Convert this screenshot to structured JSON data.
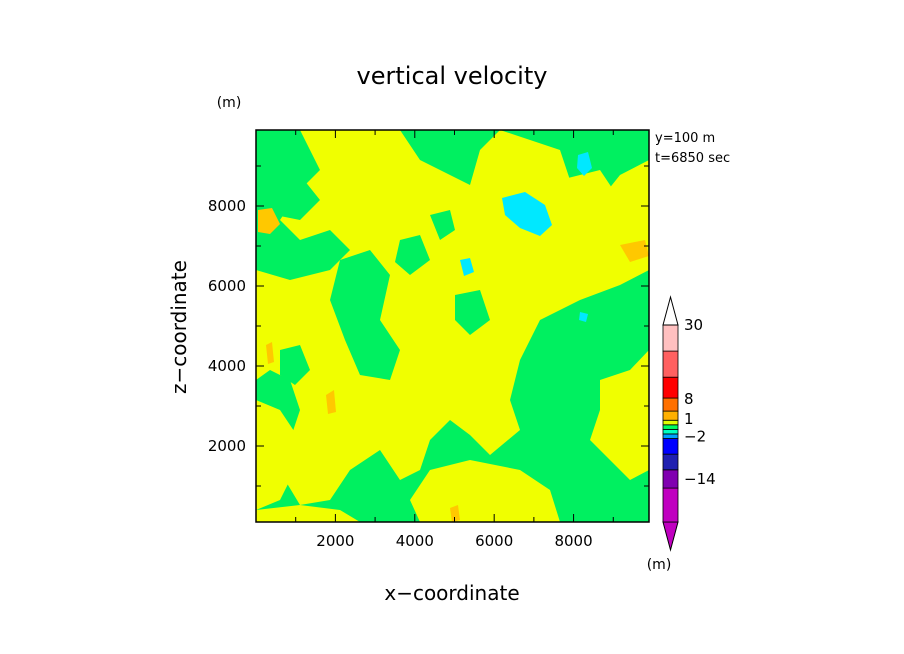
{
  "chart_data": {
    "type": "heatmap",
    "title": "vertical velocity",
    "xlabel": "x−coordinate",
    "ylabel": "z−coordinate",
    "x_unit": "(m)",
    "y_unit": "(m)",
    "xlim": [
      0,
      9900
    ],
    "ylim": [
      100,
      9900
    ],
    "x_ticks": [
      "2000",
      "4000",
      "6000",
      "8000"
    ],
    "y_ticks": [
      "2000",
      "4000",
      "6000",
      "8000"
    ],
    "x_tick_values": [
      2000,
      4000,
      6000,
      8000
    ],
    "y_tick_values": [
      2000,
      4000,
      6000,
      8000
    ],
    "annotations": [
      "y=100 m",
      "t=6850 sec"
    ],
    "colorbar": {
      "unit": "(m)",
      "labels": [
        "30",
        "8",
        "1",
        "−2",
        "−14"
      ],
      "levels": [
        {
          "color": "#c000c0"
        },
        {
          "color": "#8000b0"
        },
        {
          "color": "#2020b0"
        },
        {
          "color": "#0000ff"
        },
        {
          "color": "#00a0ff"
        },
        {
          "color": "#00ffc0"
        },
        {
          "color": "#00ff60"
        },
        {
          "color": "#e0ff00"
        },
        {
          "color": "#ffb000"
        },
        {
          "color": "#ff7000"
        },
        {
          "color": "#ff0000"
        },
        {
          "color": "#ff6060"
        },
        {
          "color": "#ffc0c0"
        }
      ]
    },
    "field_colors": {
      "green": "#00f060",
      "yellow": "#f0ff00",
      "orange": "#ffc800",
      "cyan": "#00e8ff"
    },
    "grid": false
  }
}
